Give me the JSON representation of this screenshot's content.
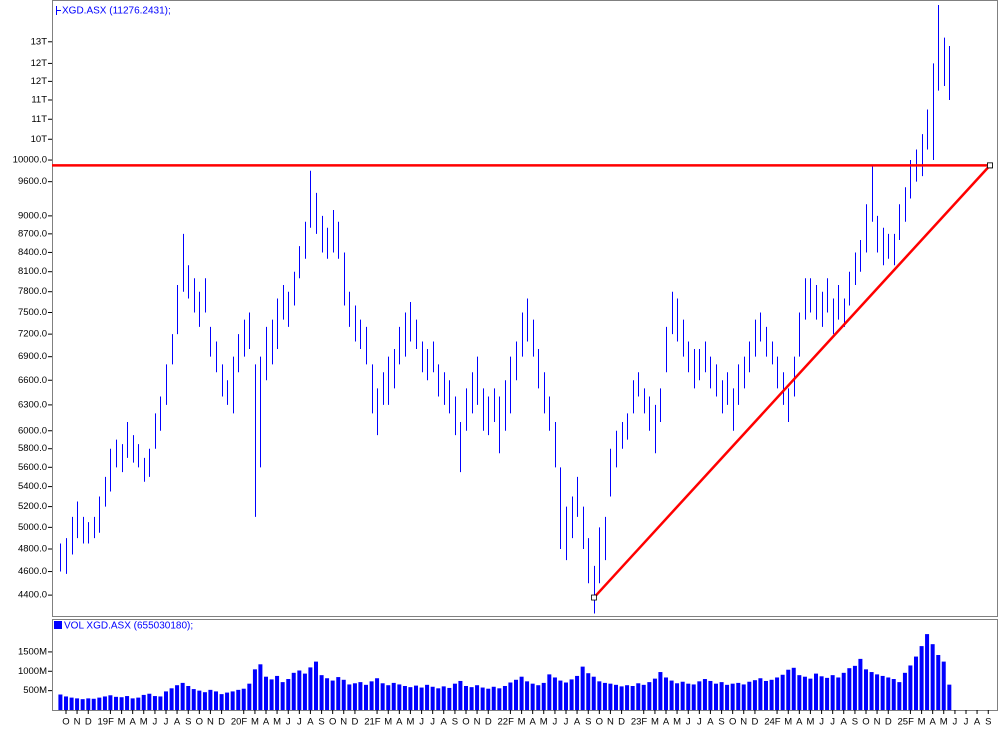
{
  "chart_data": {
    "type": "ohlc",
    "legend": "XGD.ASX (11276.2431);",
    "log_scale": true,
    "xlim": [
      2018.645,
      2025.74
    ],
    "ylim": [
      4230,
      13500
    ],
    "x": [
      2018.708,
      2018.75,
      2018.792,
      2018.833,
      2018.875,
      2018.917,
      2018.958,
      2019,
      2019.042,
      2019.083,
      2019.125,
      2019.167,
      2019.208,
      2019.25,
      2019.292,
      2019.333,
      2019.375,
      2019.417,
      2019.458,
      2019.5,
      2019.542,
      2019.583,
      2019.625,
      2019.667,
      2019.708,
      2019.75,
      2019.792,
      2019.833,
      2019.875,
      2019.917,
      2019.958,
      2020,
      2020.042,
      2020.083,
      2020.125,
      2020.167,
      2020.208,
      2020.25,
      2020.292,
      2020.333,
      2020.375,
      2020.417,
      2020.458,
      2020.5,
      2020.542,
      2020.583,
      2020.625,
      2020.667,
      2020.708,
      2020.75,
      2020.792,
      2020.833,
      2020.875,
      2020.917,
      2020.958,
      2021,
      2021.042,
      2021.083,
      2021.125,
      2021.167,
      2021.208,
      2021.25,
      2021.292,
      2021.333,
      2021.375,
      2021.417,
      2021.458,
      2021.5,
      2021.542,
      2021.583,
      2021.625,
      2021.667,
      2021.708,
      2021.75,
      2021.792,
      2021.833,
      2021.875,
      2021.917,
      2021.958,
      2022,
      2022.042,
      2022.083,
      2022.125,
      2022.167,
      2022.208,
      2022.25,
      2022.292,
      2022.333,
      2022.375,
      2022.417,
      2022.458,
      2022.5,
      2022.542,
      2022.583,
      2022.625,
      2022.667,
      2022.708,
      2022.75,
      2022.792,
      2022.833,
      2022.875,
      2022.917,
      2022.958,
      2023,
      2023.042,
      2023.083,
      2023.125,
      2023.167,
      2023.208,
      2023.25,
      2023.292,
      2023.333,
      2023.375,
      2023.417,
      2023.458,
      2023.5,
      2023.542,
      2023.583,
      2023.625,
      2023.667,
      2023.708,
      2023.75,
      2023.792,
      2023.833,
      2023.875,
      2023.917,
      2023.958,
      2024,
      2024.042,
      2024.083,
      2024.125,
      2024.167,
      2024.208,
      2024.25,
      2024.292,
      2024.333,
      2024.375,
      2024.417,
      2024.458,
      2024.5,
      2024.542,
      2024.583,
      2024.625,
      2024.667,
      2024.708,
      2024.75,
      2024.792,
      2024.833,
      2024.875,
      2024.917,
      2024.958,
      2025,
      2025.042,
      2025.083,
      2025.125,
      2025.167,
      2025.208,
      2025.25,
      2025.292,
      2025.333,
      2025.375
    ],
    "series": [
      {
        "name": "XGD.ASX",
        "color": "#0000ff",
        "low": [
          4600,
          4580,
          4750,
          4900,
          4850,
          4850,
          4900,
          4950,
          5200,
          5350,
          5600,
          5550,
          5700,
          5650,
          5600,
          5450,
          5500,
          5800,
          6000,
          6300,
          6800,
          7200,
          7800,
          7700,
          7500,
          7300,
          7500,
          6900,
          6700,
          6400,
          6300,
          6200,
          6700,
          6900,
          7000,
          5100,
          5600,
          6600,
          6800,
          7000,
          7400,
          7300,
          7600,
          8000,
          8300,
          8800,
          8700,
          8400,
          8300,
          8400,
          8300,
          7600,
          7300,
          7100,
          7000,
          6800,
          6200,
          5950,
          6300,
          6300,
          6500,
          6800,
          6900,
          7100,
          7000,
          6700,
          6600,
          6700,
          6400,
          6300,
          6200,
          5950,
          5550,
          6000,
          6200,
          6300,
          6000,
          5950,
          6100,
          5750,
          6000,
          6200,
          6600,
          6900,
          7100,
          6900,
          6500,
          6200,
          6000,
          5600,
          4800,
          4700,
          4900,
          5100,
          4800,
          4500,
          4250,
          4500,
          4700,
          5300,
          5600,
          5800,
          5900,
          6200,
          6400,
          6200,
          6000,
          5750,
          6100,
          6700,
          7200,
          7100,
          6900,
          6700,
          6500,
          6600,
          6700,
          6500,
          6400,
          6200,
          6300,
          6000,
          6300,
          6500,
          6700,
          6900,
          7100,
          6900,
          6800,
          6500,
          6300,
          6100,
          6400,
          6900,
          7400,
          7500,
          7400,
          7300,
          7500,
          7200,
          7400,
          7300,
          7600,
          7900,
          8100,
          8400,
          8900,
          8400,
          8200,
          8300,
          8200,
          8600,
          8900,
          9300,
          9600,
          9700,
          10200,
          10000,
          11400,
          11500,
          11200
        ],
        "high": [
          4850,
          4900,
          5100,
          5250,
          5100,
          5050,
          5100,
          5300,
          5500,
          5800,
          5900,
          5850,
          6100,
          5950,
          5850,
          5700,
          5800,
          6200,
          6400,
          6800,
          7200,
          7900,
          8700,
          8200,
          8000,
          7800,
          8000,
          7300,
          7100,
          6800,
          6600,
          6900,
          7200,
          7400,
          7500,
          6800,
          6900,
          7300,
          7400,
          7700,
          7900,
          7800,
          8100,
          8500,
          8900,
          9800,
          9400,
          9000,
          8800,
          9100,
          8900,
          8400,
          7800,
          7600,
          7400,
          7300,
          6800,
          6500,
          6700,
          6900,
          7000,
          7300,
          7500,
          7650,
          7400,
          7100,
          7000,
          7100,
          6800,
          6700,
          6600,
          6400,
          6100,
          6500,
          6700,
          6900,
          6500,
          6400,
          6500,
          6400,
          6600,
          6900,
          7100,
          7500,
          7700,
          7400,
          7000,
          6700,
          6400,
          6100,
          5600,
          5200,
          5300,
          5500,
          5200,
          4900,
          4650,
          5000,
          5100,
          5800,
          6000,
          6100,
          6200,
          6600,
          6700,
          6500,
          6400,
          6300,
          6500,
          7300,
          7800,
          7700,
          7400,
          7100,
          7000,
          7000,
          7100,
          6900,
          6800,
          6600,
          6700,
          6500,
          6800,
          6900,
          7100,
          7400,
          7500,
          7300,
          7100,
          6900,
          6700,
          6500,
          6900,
          7500,
          8000,
          8000,
          7900,
          7800,
          8000,
          7700,
          7900,
          7700,
          8100,
          8400,
          8600,
          9200,
          9900,
          9000,
          8800,
          8700,
          8700,
          9200,
          9500,
          10000,
          10200,
          10500,
          11000,
          12000,
          13400,
          12600,
          12400
        ]
      }
    ],
    "yticks": [
      {
        "value": 4400,
        "label": "4400.0"
      },
      {
        "value": 4600,
        "label": "4600.0"
      },
      {
        "value": 4800,
        "label": "4800.0"
      },
      {
        "value": 5000,
        "label": "5000.0"
      },
      {
        "value": 5200,
        "label": "5200.0"
      },
      {
        "value": 5400,
        "label": "5400.0"
      },
      {
        "value": 5600,
        "label": "5600.0"
      },
      {
        "value": 5800,
        "label": "5800.0"
      },
      {
        "value": 6000,
        "label": "6000.0"
      },
      {
        "value": 6300,
        "label": "6300.0"
      },
      {
        "value": 6600,
        "label": "6600.0"
      },
      {
        "value": 6900,
        "label": "6900.0"
      },
      {
        "value": 7200,
        "label": "7200.0"
      },
      {
        "value": 7500,
        "label": "7500.0"
      },
      {
        "value": 7800,
        "label": "7800.0"
      },
      {
        "value": 8100,
        "label": "8100.0"
      },
      {
        "value": 8400,
        "label": "8400.0"
      },
      {
        "value": 8700,
        "label": "8700.0"
      },
      {
        "value": 9000,
        "label": "9000.0"
      },
      {
        "value": 9600,
        "label": "9600.0"
      },
      {
        "value": 10000,
        "label": "10000.0"
      },
      {
        "value": 10400,
        "label": "10T"
      },
      {
        "value": 10800,
        "label": "11T"
      },
      {
        "value": 11200,
        "label": "11T"
      },
      {
        "value": 11600,
        "label": "12T"
      },
      {
        "value": 12000,
        "label": "12T"
      },
      {
        "value": 12500,
        "label": "13T"
      }
    ],
    "xticks": [
      {
        "value": 2018.75,
        "label": "O"
      },
      {
        "value": 2018.833,
        "label": "N"
      },
      {
        "value": 2018.917,
        "label": "D"
      },
      {
        "value": 2019.083,
        "label": "19F"
      },
      {
        "value": 2019.167,
        "label": "M"
      },
      {
        "value": 2019.25,
        "label": "A"
      },
      {
        "value": 2019.333,
        "label": "M"
      },
      {
        "value": 2019.417,
        "label": "J"
      },
      {
        "value": 2019.5,
        "label": "J"
      },
      {
        "value": 2019.583,
        "label": "A"
      },
      {
        "value": 2019.667,
        "label": "S"
      },
      {
        "value": 2019.75,
        "label": "O"
      },
      {
        "value": 2019.833,
        "label": "N"
      },
      {
        "value": 2019.917,
        "label": "D"
      },
      {
        "value": 2020.083,
        "label": "20F"
      },
      {
        "value": 2020.167,
        "label": "M"
      },
      {
        "value": 2020.25,
        "label": "A"
      },
      {
        "value": 2020.333,
        "label": "M"
      },
      {
        "value": 2020.417,
        "label": "J"
      },
      {
        "value": 2020.5,
        "label": "J"
      },
      {
        "value": 2020.583,
        "label": "A"
      },
      {
        "value": 2020.667,
        "label": "S"
      },
      {
        "value": 2020.75,
        "label": "O"
      },
      {
        "value": 2020.833,
        "label": "N"
      },
      {
        "value": 2020.917,
        "label": "D"
      },
      {
        "value": 2021.083,
        "label": "21F"
      },
      {
        "value": 2021.167,
        "label": "M"
      },
      {
        "value": 2021.25,
        "label": "A"
      },
      {
        "value": 2021.333,
        "label": "M"
      },
      {
        "value": 2021.417,
        "label": "J"
      },
      {
        "value": 2021.5,
        "label": "J"
      },
      {
        "value": 2021.583,
        "label": "A"
      },
      {
        "value": 2021.667,
        "label": "S"
      },
      {
        "value": 2021.75,
        "label": "O"
      },
      {
        "value": 2021.833,
        "label": "N"
      },
      {
        "value": 2021.917,
        "label": "D"
      },
      {
        "value": 2022.083,
        "label": "22F"
      },
      {
        "value": 2022.167,
        "label": "M"
      },
      {
        "value": 2022.25,
        "label": "A"
      },
      {
        "value": 2022.333,
        "label": "M"
      },
      {
        "value": 2022.417,
        "label": "J"
      },
      {
        "value": 2022.5,
        "label": "J"
      },
      {
        "value": 2022.583,
        "label": "A"
      },
      {
        "value": 2022.667,
        "label": "S"
      },
      {
        "value": 2022.75,
        "label": "O"
      },
      {
        "value": 2022.833,
        "label": "N"
      },
      {
        "value": 2022.917,
        "label": "D"
      },
      {
        "value": 2023.083,
        "label": "23F"
      },
      {
        "value": 2023.167,
        "label": "M"
      },
      {
        "value": 2023.25,
        "label": "A"
      },
      {
        "value": 2023.333,
        "label": "M"
      },
      {
        "value": 2023.417,
        "label": "J"
      },
      {
        "value": 2023.5,
        "label": "J"
      },
      {
        "value": 2023.583,
        "label": "A"
      },
      {
        "value": 2023.667,
        "label": "S"
      },
      {
        "value": 2023.75,
        "label": "O"
      },
      {
        "value": 2023.833,
        "label": "N"
      },
      {
        "value": 2023.917,
        "label": "D"
      },
      {
        "value": 2024.083,
        "label": "24F"
      },
      {
        "value": 2024.167,
        "label": "M"
      },
      {
        "value": 2024.25,
        "label": "A"
      },
      {
        "value": 2024.333,
        "label": "M"
      },
      {
        "value": 2024.417,
        "label": "J"
      },
      {
        "value": 2024.5,
        "label": "J"
      },
      {
        "value": 2024.583,
        "label": "A"
      },
      {
        "value": 2024.667,
        "label": "S"
      },
      {
        "value": 2024.75,
        "label": "O"
      },
      {
        "value": 2024.833,
        "label": "N"
      },
      {
        "value": 2024.917,
        "label": "D"
      },
      {
        "value": 2025.083,
        "label": "25F"
      },
      {
        "value": 2025.167,
        "label": "M"
      },
      {
        "value": 2025.25,
        "label": "A"
      },
      {
        "value": 2025.333,
        "label": "M"
      },
      {
        "value": 2025.417,
        "label": "J"
      },
      {
        "value": 2025.5,
        "label": "J"
      },
      {
        "value": 2025.583,
        "label": "A"
      },
      {
        "value": 2025.667,
        "label": "S"
      }
    ],
    "lines": [
      {
        "color": "#ff0000",
        "x": [
          2018.645,
          2025.68
        ],
        "y": [
          9900,
          9900
        ]
      },
      {
        "color": "#ff0000",
        "x": [
          2022.71,
          2025.68
        ],
        "y": [
          4380,
          9900
        ]
      }
    ],
    "volume": {
      "type": "bar",
      "legend": "VOL XGD.ASX (655030180);",
      "color": "#0000ff",
      "ylim": [
        0,
        2350000000
      ],
      "yticks": [
        {
          "value": 500000000,
          "label": "500M"
        },
        {
          "value": 1000000000,
          "label": "1000M"
        },
        {
          "value": 1500000000,
          "label": "1500M"
        }
      ],
      "values": [
        400000000.0,
        350000000.0,
        320000000.0,
        300000000.0,
        280000000.0,
        300000000.0,
        290000000.0,
        320000000.0,
        350000000.0,
        380000000.0,
        340000000.0,
        330000000.0,
        360000000.0,
        300000000.0,
        320000000.0,
        390000000.0,
        420000000.0,
        360000000.0,
        350000000.0,
        480000000.0,
        560000000.0,
        640000000.0,
        700000000.0,
        620000000.0,
        540000000.0,
        500000000.0,
        460000000.0,
        520000000.0,
        480000000.0,
        410000000.0,
        450000000.0,
        480000000.0,
        520000000.0,
        550000000.0,
        680000000.0,
        1050000000.0,
        1180000000.0,
        860000000.0,
        790000000.0,
        880000000.0,
        720000000.0,
        800000000.0,
        960000000.0,
        1020000000.0,
        940000000.0,
        1100000000.0,
        1250000000.0,
        900000000.0,
        820000000.0,
        760000000.0,
        850000000.0,
        780000000.0,
        660000000.0,
        690000000.0,
        720000000.0,
        650000000.0,
        740000000.0,
        820000000.0,
        690000000.0,
        640000000.0,
        700000000.0,
        660000000.0,
        620000000.0,
        590000000.0,
        630000000.0,
        580000000.0,
        650000000.0,
        600000000.0,
        560000000.0,
        610000000.0,
        570000000.0,
        680000000.0,
        750000000.0,
        620000000.0,
        590000000.0,
        640000000.0,
        580000000.0,
        550000000.0,
        600000000.0,
        560000000.0,
        620000000.0,
        710000000.0,
        780000000.0,
        860000000.0,
        740000000.0,
        680000000.0,
        640000000.0,
        700000000.0,
        920000000.0,
        840000000.0,
        760000000.0,
        710000000.0,
        790000000.0,
        880000000.0,
        1120000000.0,
        950000000.0,
        860000000.0,
        740000000.0,
        700000000.0,
        680000000.0,
        650000000.0,
        610000000.0,
        640000000.0,
        620000000.0,
        690000000.0,
        650000000.0,
        720000000.0,
        810000000.0,
        980000000.0,
        840000000.0,
        760000000.0,
        690000000.0,
        730000000.0,
        680000000.0,
        660000000.0,
        740000000.0,
        800000000.0,
        750000000.0,
        680000000.0,
        720000000.0,
        650000000.0,
        680000000.0,
        700000000.0,
        660000000.0,
        730000000.0,
        770000000.0,
        820000000.0,
        750000000.0,
        780000000.0,
        840000000.0,
        910000000.0,
        1040000000.0,
        1090000000.0,
        900000000.0,
        860000000.0,
        810000000.0,
        940000000.0,
        870000000.0,
        830000000.0,
        900000000.0,
        840000000.0,
        960000000.0,
        1080000000.0,
        1140000000.0,
        1320000000.0,
        1050000000.0,
        980000000.0,
        920000000.0,
        880000000.0,
        840000000.0,
        800000000.0,
        720000000.0,
        960000000.0,
        1150000000.0,
        1380000000.0,
        1650000000.0,
        1960000000.0,
        1700000000.0,
        1420000000.0,
        1250000000.0,
        655030180
      ]
    }
  }
}
